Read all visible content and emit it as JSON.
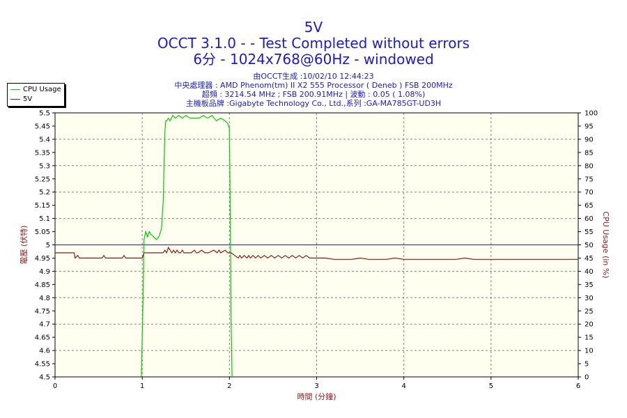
{
  "header": {
    "title": "5V",
    "subtitle": "OCCT 3.1.0 -  - Test Completed without errors",
    "config": "6分 - 1024x768@60Hz - windowed",
    "info_lines": [
      "由OCCT生成 :10/02/10 12:44:23",
      "中央處理器 : AMD Phenom(tm) II X2 555 Processor ( Deneb ) FSB 200MHz",
      "超頻 : 3214.54 MHz ; FSB 200.91MHz | 波動 : 0.05 ( 1.08%)",
      "主機板品牌 :Gigabyte Technology Co., Ltd.,系列 :GA-MA785GT-UD3H"
    ]
  },
  "colors": {
    "cpu": "#00cc00",
    "voltage": "#8b1a1a",
    "reference": "#1a1acd",
    "plot_bg": "#fffff0",
    "title": "#1a1acd"
  },
  "chart_data": {
    "type": "line",
    "xlabel": "時間 (分鐘)",
    "ylabel": "電壓 (伏特)",
    "y2label": "CPU Usage (in %)",
    "xlim": [
      0,
      6
    ],
    "ylim": [
      4.5,
      5.5
    ],
    "y2lim": [
      0,
      100
    ],
    "xticks": [
      "0",
      "1",
      "2",
      "3",
      "4",
      "5",
      "6"
    ],
    "yticks": [
      "4.5",
      "4.55",
      "4.6",
      "4.65",
      "4.7",
      "4.75",
      "4.8",
      "4.85",
      "4.9",
      "4.95",
      "5",
      "5.05",
      "5.1",
      "5.15",
      "5.2",
      "5.25",
      "5.3",
      "5.35",
      "5.4",
      "5.45",
      "5.5"
    ],
    "y2ticks": [
      "0",
      "5",
      "10",
      "15",
      "20",
      "25",
      "30",
      "35",
      "40",
      "45",
      "50",
      "55",
      "60",
      "65",
      "70",
      "75",
      "80",
      "85",
      "90",
      "95",
      "100"
    ],
    "grid": true,
    "legend": "top-left",
    "reference_line": 5.0,
    "series": [
      {
        "name": "CPU Usage",
        "axis": "right",
        "x": [
          0.99,
          1.0,
          1.01,
          1.02,
          1.04,
          1.06,
          1.08,
          1.1,
          1.13,
          1.16,
          1.19,
          1.22,
          1.24,
          1.25,
          1.26,
          1.27,
          1.28,
          1.3,
          1.32,
          1.35,
          1.38,
          1.42,
          1.46,
          1.5,
          1.55,
          1.6,
          1.65,
          1.7,
          1.75,
          1.8,
          1.85,
          1.9,
          1.95,
          1.98,
          2.0,
          2.01,
          2.02,
          2.03
        ],
        "y": [
          0,
          16,
          30,
          52,
          55,
          53,
          55,
          54,
          53,
          52,
          53,
          56,
          66,
          80,
          93,
          97,
          97,
          98,
          97,
          99,
          98,
          99,
          98,
          99,
          98,
          98,
          98,
          99,
          98,
          99,
          97,
          98,
          97,
          96,
          94,
          60,
          20,
          0
        ]
      },
      {
        "name": "5V",
        "axis": "left",
        "x": [
          0.0,
          0.22,
          0.23,
          0.26,
          0.28,
          0.54,
          0.56,
          0.58,
          0.77,
          0.79,
          0.81,
          1.0,
          1.02,
          1.24,
          1.26,
          1.28,
          1.3,
          1.32,
          1.34,
          1.36,
          1.38,
          1.4,
          1.42,
          1.44,
          1.46,
          1.48,
          1.5,
          1.56,
          1.6,
          1.62,
          1.64,
          1.68,
          1.72,
          1.74,
          1.76,
          1.82,
          1.86,
          1.88,
          1.9,
          1.95,
          1.98,
          2.02,
          2.06,
          2.1,
          2.12,
          2.14,
          2.17,
          2.2,
          2.22,
          2.24,
          2.27,
          2.3,
          2.33,
          2.36,
          2.4,
          2.44,
          2.48,
          2.52,
          2.56,
          2.6,
          2.64,
          2.68,
          2.72,
          2.76,
          2.8,
          2.84,
          2.88,
          2.92,
          2.96,
          3.0,
          3.1,
          3.2,
          3.3,
          3.4,
          3.5,
          3.6,
          3.7,
          3.8,
          3.9,
          4.0,
          4.1,
          4.2,
          4.3,
          4.4,
          4.5,
          4.6,
          4.7,
          4.8,
          4.9,
          5.0,
          5.1,
          5.2,
          5.3,
          5.4,
          5.5,
          5.6,
          5.7,
          5.8,
          5.9,
          6.0
        ],
        "y": [
          4.97,
          4.97,
          4.95,
          4.96,
          4.95,
          4.95,
          4.96,
          4.95,
          4.95,
          4.96,
          4.95,
          4.95,
          4.97,
          4.97,
          4.98,
          4.97,
          4.99,
          4.98,
          4.97,
          4.98,
          4.97,
          4.98,
          4.97,
          4.97,
          4.98,
          4.97,
          4.97,
          4.97,
          4.98,
          4.97,
          4.97,
          4.98,
          4.97,
          4.97,
          4.97,
          4.98,
          4.97,
          4.98,
          4.97,
          4.98,
          4.97,
          4.97,
          4.96,
          4.95,
          4.96,
          4.95,
          4.96,
          4.95,
          4.96,
          4.95,
          4.96,
          4.95,
          4.96,
          4.95,
          4.96,
          4.95,
          4.96,
          4.95,
          4.96,
          4.95,
          4.96,
          4.95,
          4.96,
          4.95,
          4.96,
          4.95,
          4.96,
          4.95,
          4.95,
          4.95,
          4.95,
          4.945,
          4.945,
          4.945,
          4.95,
          4.945,
          4.945,
          4.945,
          4.95,
          4.945,
          4.945,
          4.945,
          4.945,
          4.945,
          4.945,
          4.945,
          4.95,
          4.945,
          4.945,
          4.945,
          4.945,
          4.945,
          4.945,
          4.945,
          4.945,
          4.945,
          4.945,
          4.945,
          4.945,
          4.945
        ]
      }
    ]
  }
}
